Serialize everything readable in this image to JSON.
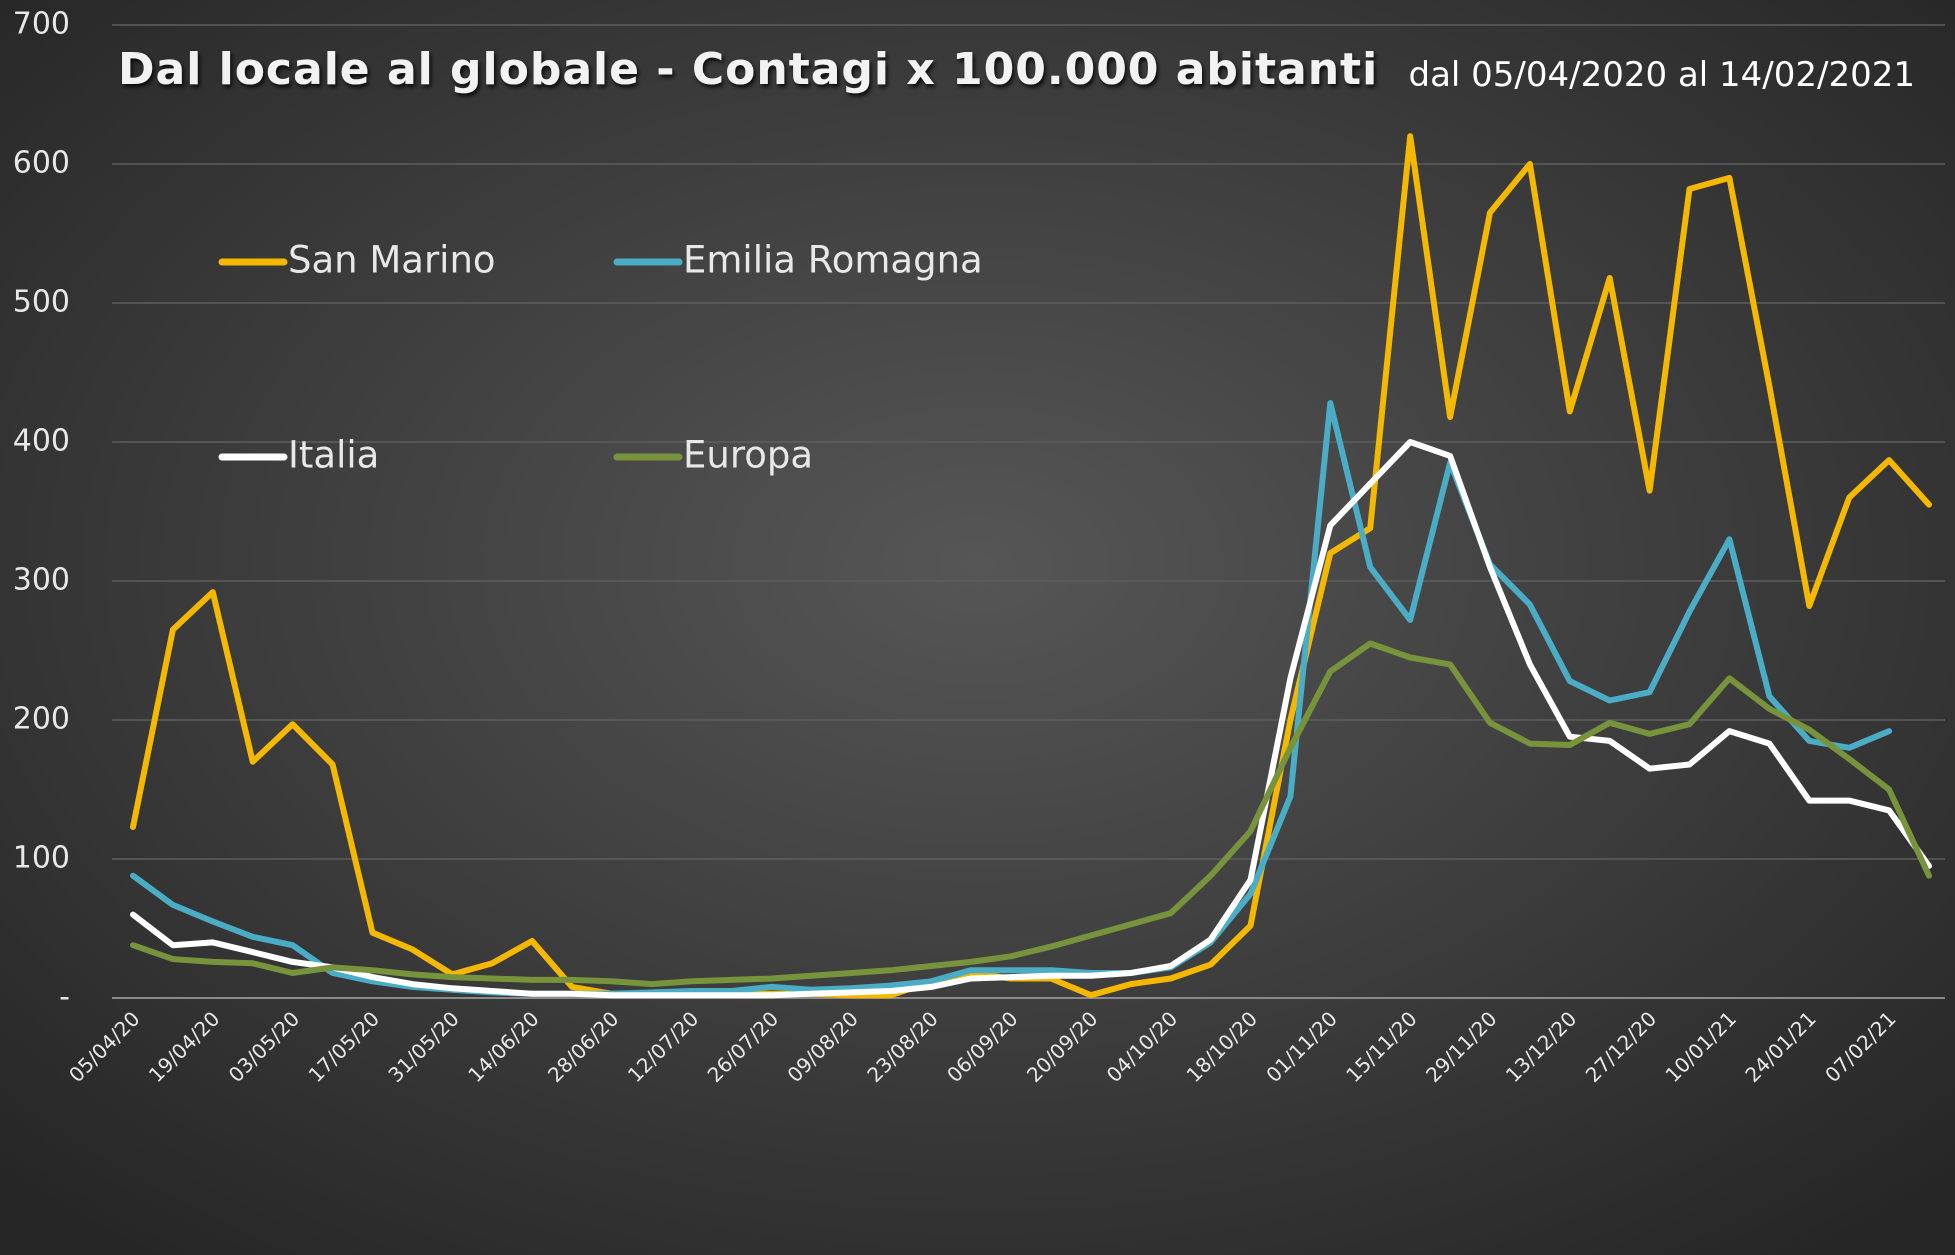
{
  "chart_data": {
    "type": "line",
    "title": "Dal locale al globale - Contagi x 100.000 abitanti",
    "subtitle": "dal 05/04/2020 al 14/02/2021",
    "categories": [
      "05/04/20",
      null,
      "19/04/20",
      null,
      "03/05/20",
      null,
      "17/05/20",
      null,
      "31/05/20",
      null,
      "14/06/20",
      null,
      "28/06/20",
      null,
      "12/07/20",
      null,
      "26/07/20",
      null,
      "09/08/20",
      null,
      "23/08/20",
      null,
      "06/09/20",
      null,
      "20/09/20",
      null,
      "04/10/20",
      null,
      "18/10/20",
      null,
      "01/11/20",
      null,
      "15/11/20",
      null,
      "29/11/20",
      null,
      "13/12/20",
      null,
      "27/12/20",
      null,
      "10/01/21",
      null,
      "24/01/21",
      null,
      "07/02/21",
      null
    ],
    "series": [
      {
        "name": "San Marino",
        "color": "#f5b800",
        "values": [
          123,
          265,
          292,
          170,
          197,
          168,
          47,
          35,
          17,
          25,
          41,
          8,
          3,
          3,
          3,
          3,
          3,
          3,
          2,
          2,
          12,
          18,
          14,
          14,
          2,
          10,
          14,
          24,
          52,
          200,
          320,
          338,
          620,
          418,
          565,
          600,
          422,
          518,
          365,
          582,
          590,
          440,
          282,
          360,
          387,
          355
        ]
      },
      {
        "name": "Emilia Romagna",
        "color": "#4bacc6",
        "values": [
          88,
          67,
          55,
          44,
          38,
          18,
          12,
          8,
          6,
          4,
          3,
          3,
          3,
          4,
          5,
          5,
          8,
          6,
          7,
          9,
          12,
          20,
          20,
          20,
          18,
          18,
          22,
          40,
          75,
          145,
          428,
          310,
          272,
          385,
          312,
          283,
          228,
          214,
          220,
          278,
          330,
          217,
          185,
          180,
          192,
          null
        ]
      },
      {
        "name": "Italia",
        "color": "#ffffff",
        "values": [
          60,
          38,
          40,
          33,
          26,
          22,
          15,
          10,
          7,
          5,
          3,
          3,
          2,
          2,
          2,
          2,
          2,
          3,
          4,
          5,
          8,
          14,
          15,
          16,
          16,
          18,
          23,
          42,
          85,
          230,
          340,
          370,
          400,
          390,
          310,
          240,
          188,
          185,
          165,
          168,
          192,
          183,
          142,
          142,
          135,
          95
        ]
      },
      {
        "name": "Europa",
        "color": "#77933c",
        "values": [
          38,
          28,
          26,
          25,
          18,
          22,
          20,
          17,
          15,
          14,
          13,
          13,
          12,
          10,
          12,
          13,
          14,
          16,
          18,
          20,
          23,
          26,
          30,
          37,
          45,
          53,
          61,
          88,
          120,
          180,
          235,
          255,
          245,
          240,
          198,
          183,
          182,
          198,
          190,
          197,
          230,
          208,
          193,
          172,
          150,
          88
        ]
      }
    ],
    "ylim": [
      0,
      700
    ],
    "yticks": [
      {
        "value": 0,
        "label": "-"
      },
      100,
      200,
      300,
      400,
      500,
      600,
      700
    ],
    "grid": true
  }
}
